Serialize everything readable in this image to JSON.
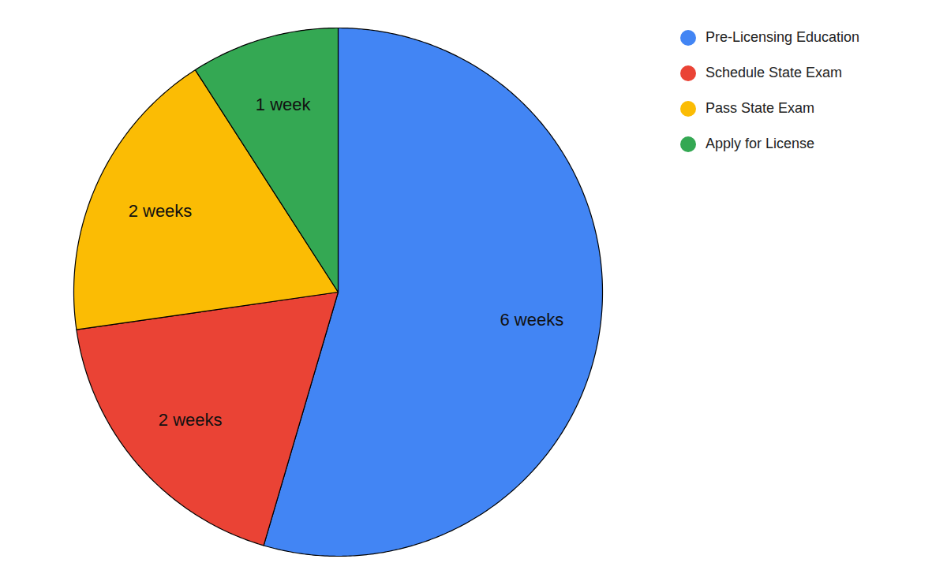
{
  "chart_data": {
    "type": "pie",
    "categories": [
      "Pre-Licensing Education",
      "Schedule State Exam",
      "Pass State Exam",
      "Apply for License"
    ],
    "values": [
      6,
      2,
      2,
      1
    ],
    "value_labels": [
      "6 weeks",
      "2 weeks",
      "2 weeks",
      "1 week"
    ],
    "colors": [
      "#4285f4",
      "#ea4335",
      "#fbbc04",
      "#34a853"
    ],
    "data_labels": true,
    "legend": "top-right"
  }
}
